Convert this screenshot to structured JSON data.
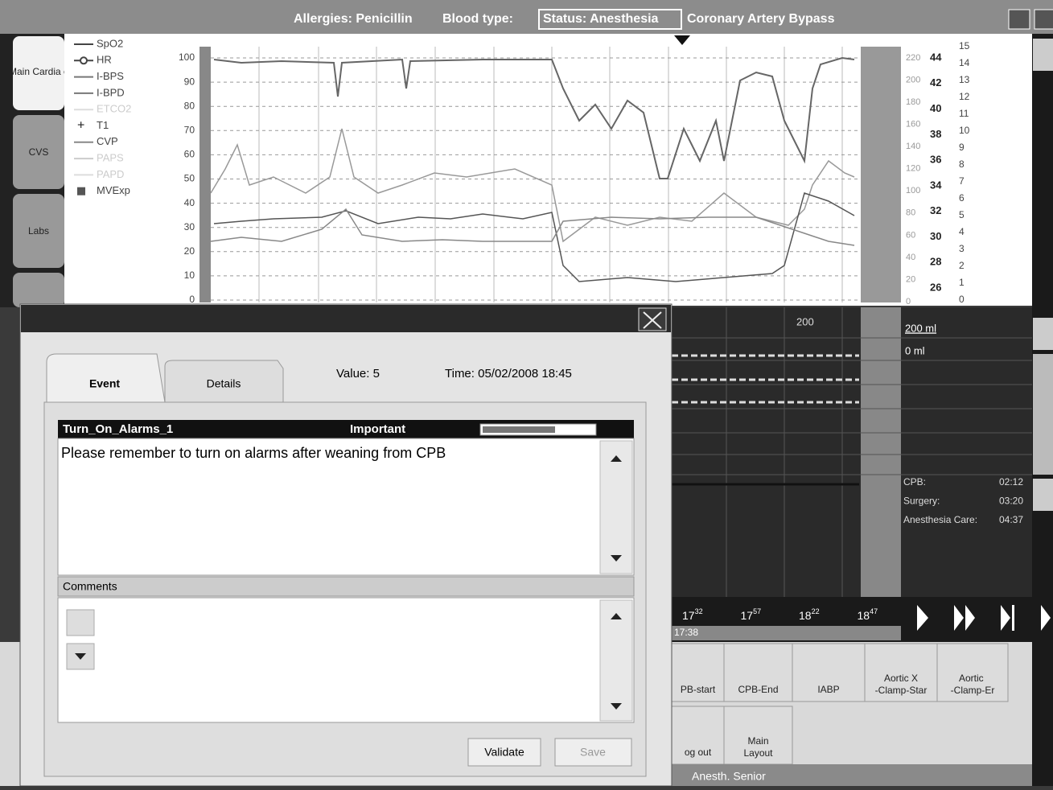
{
  "header": {
    "allergies": "Allergies: Penicillin",
    "blood_type": "Blood type:",
    "status": "Status: Anesthesia",
    "procedure": "Coronary Artery Bypass"
  },
  "side_tabs": [
    "Main Cardia c",
    "CVS",
    "Labs"
  ],
  "legend": [
    "SpO2",
    "HR",
    "I-BPS",
    "I-BPD",
    "ETCO2",
    "T1",
    "CVP",
    "PAPS",
    "PAPD",
    "MVExp"
  ],
  "axes": {
    "left": [
      "100",
      "90",
      "80",
      "70",
      "60",
      "50",
      "40",
      "30",
      "20",
      "10",
      "0"
    ],
    "right1": [
      "220",
      "200",
      "180",
      "160",
      "140",
      "120",
      "100",
      "80",
      "60",
      "40",
      "20",
      "0"
    ],
    "right2": [
      "44",
      "42",
      "40",
      "38",
      "36",
      "34",
      "32",
      "30",
      "28",
      "26"
    ],
    "right3": [
      "15",
      "14",
      "13",
      "12",
      "11",
      "10",
      "9",
      "8",
      "7",
      "6",
      "5",
      "4",
      "3",
      "2",
      "1",
      "0"
    ]
  },
  "fluids": {
    "marker": "200",
    "max": "200 ml",
    "min": "0 ml"
  },
  "durations": [
    {
      "label": "CPB:",
      "value": "02:12"
    },
    {
      "label": "Surgery:",
      "value": "03:20"
    },
    {
      "label": "Anesthesia Care:",
      "value": "04:37"
    }
  ],
  "timeline": {
    "times": [
      {
        "hour": "17",
        "minute": "32"
      },
      {
        "hour": "17",
        "minute": "57"
      },
      {
        "hour": "18",
        "minute": "22"
      },
      {
        "hour": "18",
        "minute": "47"
      }
    ],
    "current": "17:38"
  },
  "buttons": [
    "PB-start",
    "CPB-End",
    "IABP",
    "Aortic X-Clamp-Star",
    "Aortic -Clamp-Er",
    "og out",
    "Main Layout"
  ],
  "footer": "Anesth. Senior",
  "dialog": {
    "tabs": [
      "Event",
      "Details"
    ],
    "value": "Value: 5",
    "time": "Time: 05/02/2008 18:45",
    "event_name": "Turn_On_Alarms_1",
    "priority": "Important",
    "message": "Please remember to turn on alarms after weaning from CPB",
    "comments_label": "Comments",
    "validate": "Validate",
    "save": "Save"
  }
}
